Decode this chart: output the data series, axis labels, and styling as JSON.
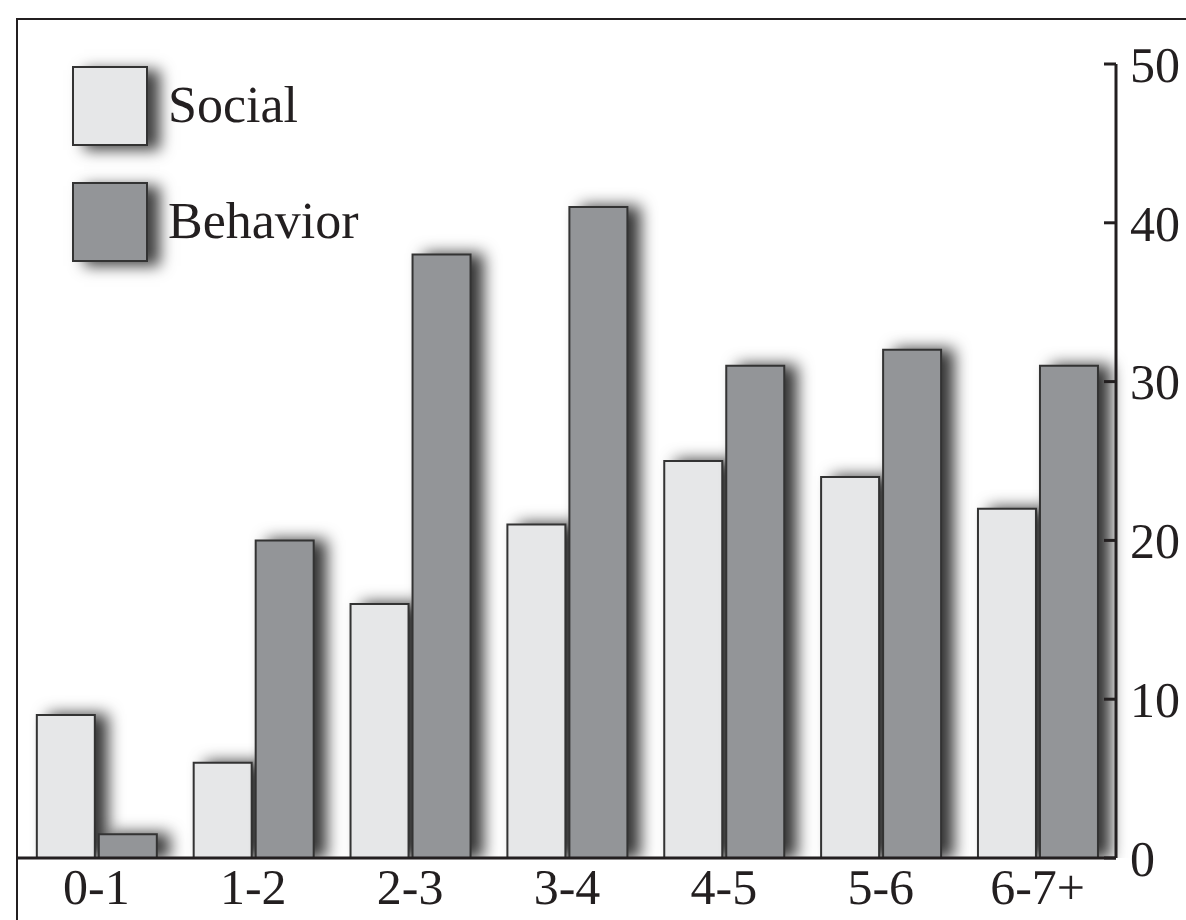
{
  "chart_data": {
    "type": "bar",
    "categories": [
      "0-1",
      "1-2",
      "2-3",
      "3-4",
      "4-5",
      "5-6",
      "6-7+"
    ],
    "series": [
      {
        "name": "Social",
        "color": "#e6e7e8",
        "values": [
          9,
          6,
          16,
          21,
          25,
          24,
          22
        ]
      },
      {
        "name": "Behavior",
        "color": "#939598",
        "values": [
          1.5,
          20,
          38,
          41,
          31,
          32,
          31
        ]
      }
    ],
    "ylim": [
      0,
      50
    ],
    "yticks": [
      0,
      10,
      20,
      30,
      40,
      50
    ],
    "legend": "top left"
  }
}
